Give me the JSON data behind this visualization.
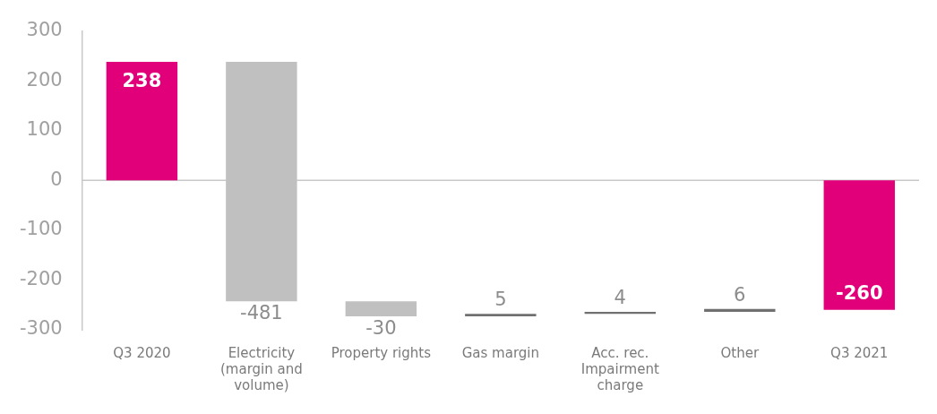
{
  "chart_data": {
    "type": "bar",
    "categories": [
      "Q3 2020",
      "Electricity (margin and volume)",
      "Property rights",
      "Gas margin",
      "Acc. rec. Impairment charge",
      "Other",
      "Q3 2021"
    ],
    "values": [
      238,
      -481,
      -30,
      5,
      4,
      6,
      -260
    ],
    "base": [
      0,
      238,
      -243,
      -273,
      -268,
      -264,
      0
    ],
    "colors": [
      "#e2007a",
      "#c0c0c0",
      "#c0c0c0",
      "#707070",
      "#707070",
      "#707070",
      "#e2007a"
    ],
    "ylim": [
      -300,
      300
    ],
    "yticks": [
      -300,
      -200,
      -100,
      0,
      100,
      200,
      300
    ],
    "ref_lines": [
      {
        "axis": "y",
        "value": 0,
        "color": "#c8c8c8"
      }
    ],
    "legend": false,
    "data_labels": true
  }
}
